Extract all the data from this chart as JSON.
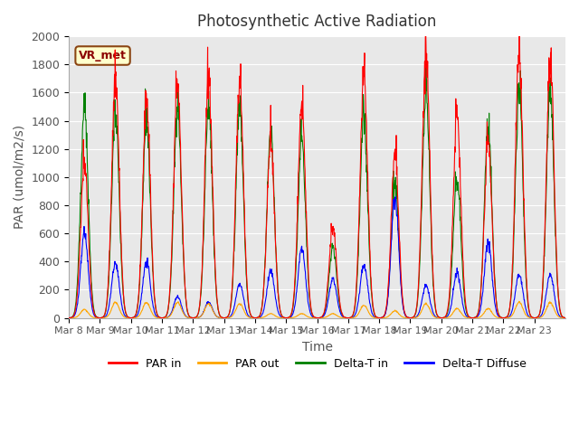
{
  "title": "Photosynthetic Active Radiation",
  "ylabel": "PAR (umol/m2/s)",
  "xlabel": "Time",
  "ylim": [
    0,
    2000
  ],
  "background_color": "#e8e8e8",
  "annotation_text": "VR_met",
  "annotation_color": "#8b0000",
  "annotation_bg": "#ffffcc",
  "annotation_border": "#8b4513",
  "legend_labels": [
    "PAR in",
    "PAR out",
    "Delta-T in",
    "Delta-T Diffuse"
  ],
  "legend_colors": [
    "red",
    "orange",
    "green",
    "blue"
  ],
  "x_tick_labels": [
    "Mar 8",
    "Mar 9",
    "Mar 10",
    "Mar 11",
    "Mar 12",
    "Mar 13",
    "Mar 14",
    "Mar 15",
    "Mar 16",
    "Mar 17",
    "Mar 18",
    "Mar 19",
    "Mar 20",
    "Mar 21",
    "Mar 22",
    "Mar 23"
  ],
  "days": 16,
  "par_in_peaks": [
    1100,
    1700,
    1550,
    1660,
    1700,
    1700,
    1250,
    1520,
    630,
    1700,
    1150,
    1860,
    1440,
    1250,
    1860,
    1800
  ],
  "par_out_peaks": [
    60,
    110,
    110,
    110,
    100,
    100,
    30,
    30,
    30,
    90,
    50,
    100,
    65,
    65,
    110,
    110
  ],
  "delta_t_in_peaks": [
    1500,
    1450,
    1380,
    1480,
    1500,
    1480,
    1280,
    1280,
    500,
    1430,
    950,
    1600,
    1000,
    1350,
    1600,
    1600
  ],
  "delta_t_diff_peaks": [
    600,
    390,
    400,
    150,
    110,
    240,
    330,
    500,
    280,
    375,
    860,
    230,
    320,
    540,
    310,
    310
  ],
  "yticks": [
    0,
    200,
    400,
    600,
    800,
    1000,
    1200,
    1400,
    1600,
    1800,
    2000
  ]
}
